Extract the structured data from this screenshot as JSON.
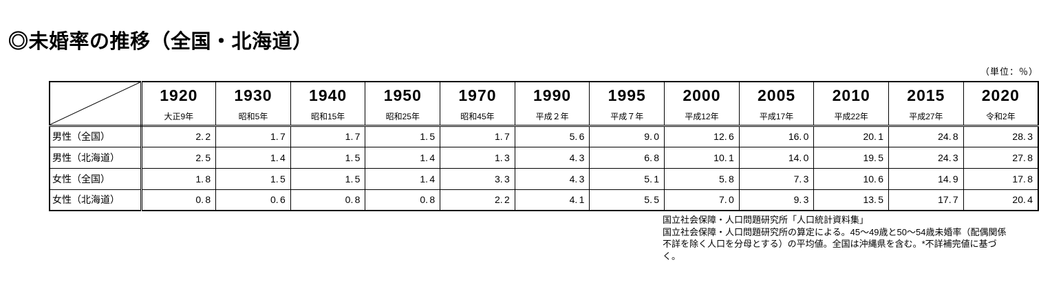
{
  "page": {
    "title": "◎未婚率の推移（全国・北海道）",
    "unit_label": "（単位：％）"
  },
  "table": {
    "columns": [
      {
        "year": "1920",
        "era": "大正9年"
      },
      {
        "year": "1930",
        "era": "昭和5年"
      },
      {
        "year": "1940",
        "era": "昭和15年"
      },
      {
        "year": "1950",
        "era": "昭和25年"
      },
      {
        "year": "1970",
        "era": "昭和45年"
      },
      {
        "year": "1990",
        "era": "平成２年"
      },
      {
        "year": "1995",
        "era": "平成７年"
      },
      {
        "year": "2000",
        "era": "平成12年"
      },
      {
        "year": "2005",
        "era": "平成17年"
      },
      {
        "year": "2010",
        "era": "平成22年"
      },
      {
        "year": "2015",
        "era": "平成27年"
      },
      {
        "year": "2020",
        "era": "令和2年"
      }
    ],
    "rows": [
      {
        "label": "男性（全国）",
        "values": [
          "2.2",
          "1.7",
          "1.7",
          "1.5",
          "1.7",
          "5.6",
          "9.0",
          "12.6",
          "16.0",
          "20.1",
          "24.8",
          "28.3"
        ]
      },
      {
        "label": "男性（北海道）",
        "values": [
          "2.5",
          "1.4",
          "1.5",
          "1.4",
          "1.3",
          "4.3",
          "6.8",
          "10.1",
          "14.0",
          "19.5",
          "24.3",
          "27.8"
        ]
      },
      {
        "label": "女性（全国）",
        "values": [
          "1.8",
          "1.5",
          "1.5",
          "1.4",
          "3.3",
          "4.3",
          "5.1",
          "5.8",
          "7.3",
          "10.6",
          "14.9",
          "17.8"
        ]
      },
      {
        "label": "女性（北海道）",
        "values": [
          "0.8",
          "0.6",
          "0.8",
          "0.8",
          "2.2",
          "4.1",
          "5.5",
          "7.0",
          "9.3",
          "13.5",
          "17.7",
          "20.4"
        ]
      }
    ]
  },
  "footnotes": [
    "国立社会保障・人口問題研究所「人口統計資料集」",
    "国立社会保障・人口問題研究所の算定による。45〜49歳と50〜54歳未婚率（配偶関係",
    "不詳を除く人口を分母とする）の平均値。全国は沖縄県を含む。*不詳補完値に基づ",
    "く。"
  ],
  "chart_data": {
    "type": "table",
    "title": "未婚率の推移（全国・北海道）",
    "unit": "%",
    "categories": [
      "1920",
      "1930",
      "1940",
      "1950",
      "1970",
      "1990",
      "1995",
      "2000",
      "2005",
      "2010",
      "2015",
      "2020"
    ],
    "category_era_labels": [
      "大正9年",
      "昭和5年",
      "昭和15年",
      "昭和25年",
      "昭和45年",
      "平成２年",
      "平成７年",
      "平成12年",
      "平成17年",
      "平成22年",
      "平成27年",
      "令和2年"
    ],
    "series": [
      {
        "name": "男性（全国）",
        "values": [
          2.2,
          1.7,
          1.7,
          1.5,
          1.7,
          5.6,
          9.0,
          12.6,
          16.0,
          20.1,
          24.8,
          28.3
        ]
      },
      {
        "name": "男性（北海道）",
        "values": [
          2.5,
          1.4,
          1.5,
          1.4,
          1.3,
          4.3,
          6.8,
          10.1,
          14.0,
          19.5,
          24.3,
          27.8
        ]
      },
      {
        "name": "女性（全国）",
        "values": [
          1.8,
          1.5,
          1.5,
          1.4,
          3.3,
          4.3,
          5.1,
          5.8,
          7.3,
          10.6,
          14.9,
          17.8
        ]
      },
      {
        "name": "女性（北海道）",
        "values": [
          0.8,
          0.6,
          0.8,
          0.8,
          2.2,
          4.1,
          5.5,
          7.0,
          9.3,
          13.5,
          17.7,
          20.4
        ]
      }
    ]
  }
}
